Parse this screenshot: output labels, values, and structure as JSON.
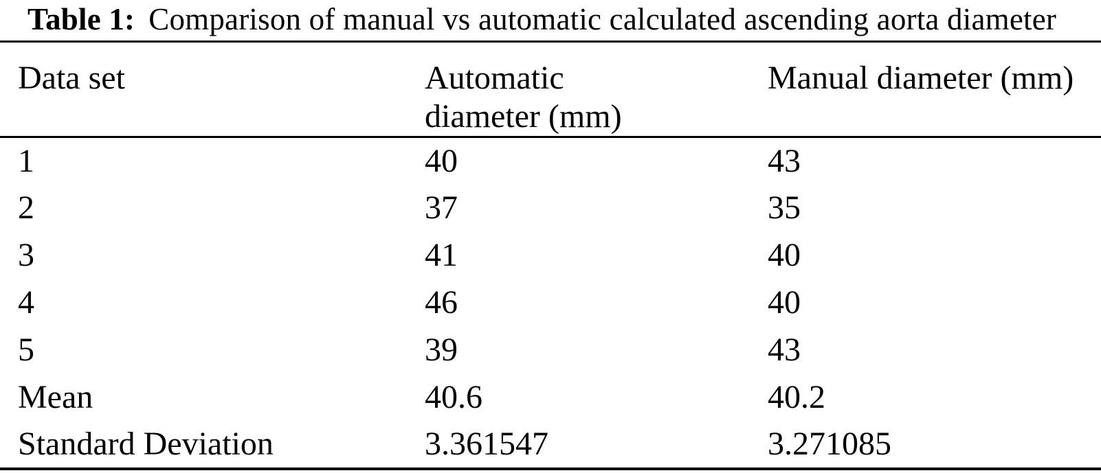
{
  "table": {
    "caption_label": "Table 1:",
    "caption_text": "Comparison of manual vs automatic calculated ascending aorta diameter",
    "columns": {
      "data_set": "Data set",
      "automatic": "Automatic diameter (mm)",
      "manual": "Manual diameter (mm)"
    },
    "rows": [
      [
        "1",
        "40",
        "43"
      ],
      [
        "2",
        "37",
        "35"
      ],
      [
        "3",
        "41",
        "40"
      ],
      [
        "4",
        "46",
        "40"
      ],
      [
        "5",
        "39",
        "43"
      ],
      [
        "Mean",
        "40.6",
        "40.2"
      ],
      [
        "Standard Deviation",
        "3.361547",
        "3.271085"
      ]
    ]
  },
  "colors": {
    "text": "#000000",
    "background": "#ffffff",
    "rule": "#000000"
  },
  "chart_data": {
    "type": "table",
    "title": "Table 1: Comparison of manual vs automatic calculated ascending aorta diameter",
    "categories": [
      "1",
      "2",
      "3",
      "4",
      "5",
      "Mean",
      "Standard Deviation"
    ],
    "series": [
      {
        "name": "Automatic diameter (mm)",
        "values": [
          40,
          37,
          41,
          46,
          39,
          40.6,
          3.361547
        ]
      },
      {
        "name": "Manual diameter (mm)",
        "values": [
          43,
          35,
          40,
          40,
          43,
          40.2,
          3.271085
        ]
      }
    ]
  }
}
